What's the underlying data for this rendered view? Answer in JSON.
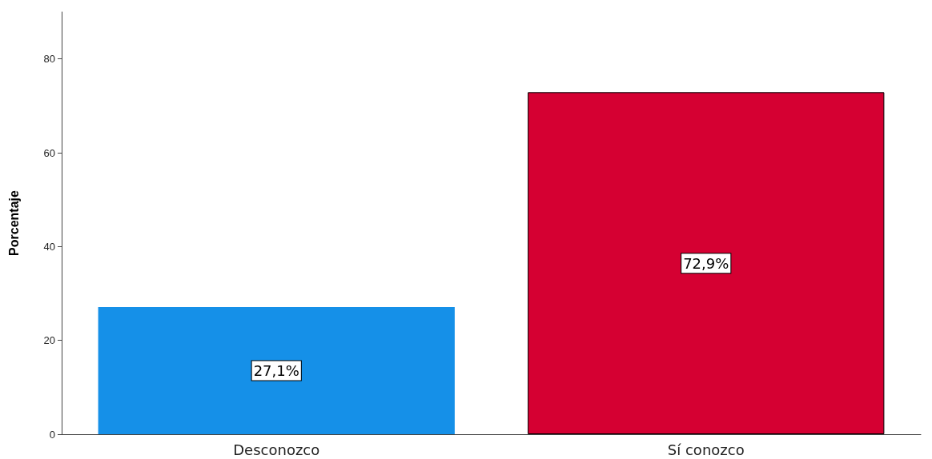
{
  "chart_data": {
    "type": "bar",
    "ylabel": "Porcentaje",
    "categories": [
      "Desconozco",
      "Sí conozco"
    ],
    "values": [
      27.1,
      72.9
    ],
    "colors": [
      "#1590e8",
      "#d50032"
    ],
    "value_labels": [
      "27,1%",
      "72,9%"
    ],
    "ylim": [
      0,
      90
    ],
    "yticks": [
      0,
      20,
      40,
      60,
      80
    ],
    "grid": false
  }
}
